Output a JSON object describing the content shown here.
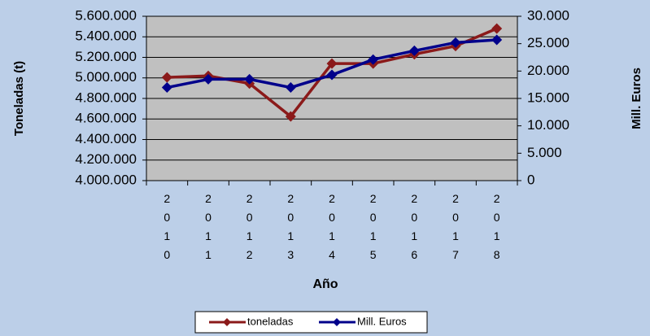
{
  "chart_data": {
    "type": "line",
    "x_label": "Año",
    "y_label": "Toneladas (t)",
    "y2_label": "Mill. Euros",
    "categories": [
      "2010",
      "2011",
      "2012",
      "2013",
      "2014",
      "2015",
      "2016",
      "2017",
      "2018"
    ],
    "series": [
      {
        "name": "toneladas",
        "color": "#8b1a1a",
        "values": [
          5005000,
          5020000,
          4945000,
          4625000,
          5140000,
          5140000,
          5230000,
          5310000,
          5480000
        ]
      },
      {
        "name": "Mill. Euros",
        "color": "#00008b",
        "axis": "y2",
        "values": [
          17000,
          18500,
          18500,
          17000,
          19300,
          22100,
          23700,
          25200,
          25700
        ]
      }
    ],
    "ylim": [
      4000000,
      5600000
    ],
    "yticks": [
      {
        "value": 4000000,
        "label": "4.000.000"
      },
      {
        "value": 4200000,
        "label": "4.200.000"
      },
      {
        "value": 4400000,
        "label": "4.400.000"
      },
      {
        "value": 4600000,
        "label": "4.600.000"
      },
      {
        "value": 4800000,
        "label": "4.800.000"
      },
      {
        "value": 5000000,
        "label": "5.000.000"
      },
      {
        "value": 5200000,
        "label": "5.200.000"
      },
      {
        "value": 5400000,
        "label": "5.400.000"
      },
      {
        "value": 5600000,
        "label": "5.600.000"
      }
    ],
    "y2lim": [
      0,
      30000
    ],
    "y2ticks": [
      0,
      {
        "value": 5000,
        "label": "5.000"
      },
      {
        "value": 10000,
        "label": "10.000"
      },
      {
        "value": 15000,
        "label": "15.000"
      },
      {
        "value": 20000,
        "label": "20.000"
      },
      {
        "value": 25000,
        "label": "25.000"
      },
      {
        "value": 30000,
        "label": "30.000"
      }
    ],
    "grid": true,
    "legend": "bottom"
  }
}
